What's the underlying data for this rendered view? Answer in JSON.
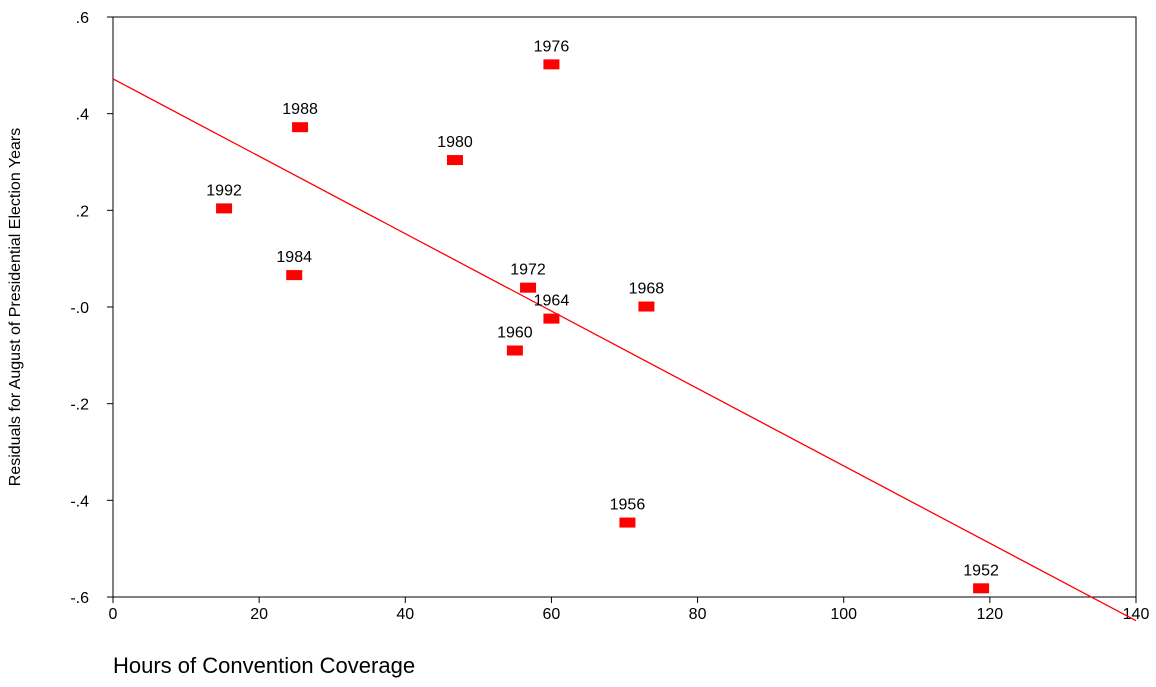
{
  "chart_data": {
    "type": "scatter",
    "xlabel": "Hours of Convention Coverage",
    "ylabel": "Residuals for August of Presidential Election Years",
    "xlim": [
      0,
      140
    ],
    "ylim": [
      -0.6,
      0.6
    ],
    "x_ticks": [
      0,
      20,
      40,
      60,
      80,
      100,
      120,
      140
    ],
    "x_tick_labels": [
      "0",
      "20",
      "40",
      "60",
      "80",
      "100",
      "120",
      "140"
    ],
    "y_ticks": [
      0.6,
      0.4,
      0.2,
      0.0,
      -0.2,
      -0.4,
      -0.6
    ],
    "y_tick_labels": [
      ".6",
      ".4",
      ".2",
      "-.0",
      "-.2",
      "-.4",
      "-.6"
    ],
    "grid": false,
    "marker_color": "#ff0000",
    "line_color": "#ff0000",
    "points": [
      {
        "label": "1992",
        "x": 15.2,
        "y": 0.204
      },
      {
        "label": "1988",
        "x": 25.6,
        "y": 0.372
      },
      {
        "label": "1984",
        "x": 24.8,
        "y": 0.066
      },
      {
        "label": "1980",
        "x": 46.8,
        "y": 0.304
      },
      {
        "label": "1976",
        "x": 60.0,
        "y": 0.502
      },
      {
        "label": "1972",
        "x": 56.8,
        "y": 0.04
      },
      {
        "label": "1968",
        "x": 73.0,
        "y": 0.001
      },
      {
        "label": "1964",
        "x": 60.0,
        "y": -0.024
      },
      {
        "label": "1960",
        "x": 55.0,
        "y": -0.09
      },
      {
        "label": "1956",
        "x": 70.4,
        "y": -0.446
      },
      {
        "label": "1952",
        "x": 118.8,
        "y": -0.582
      }
    ],
    "fit_line": {
      "x": [
        0,
        140
      ],
      "y": [
        0.472,
        -0.649
      ]
    }
  }
}
